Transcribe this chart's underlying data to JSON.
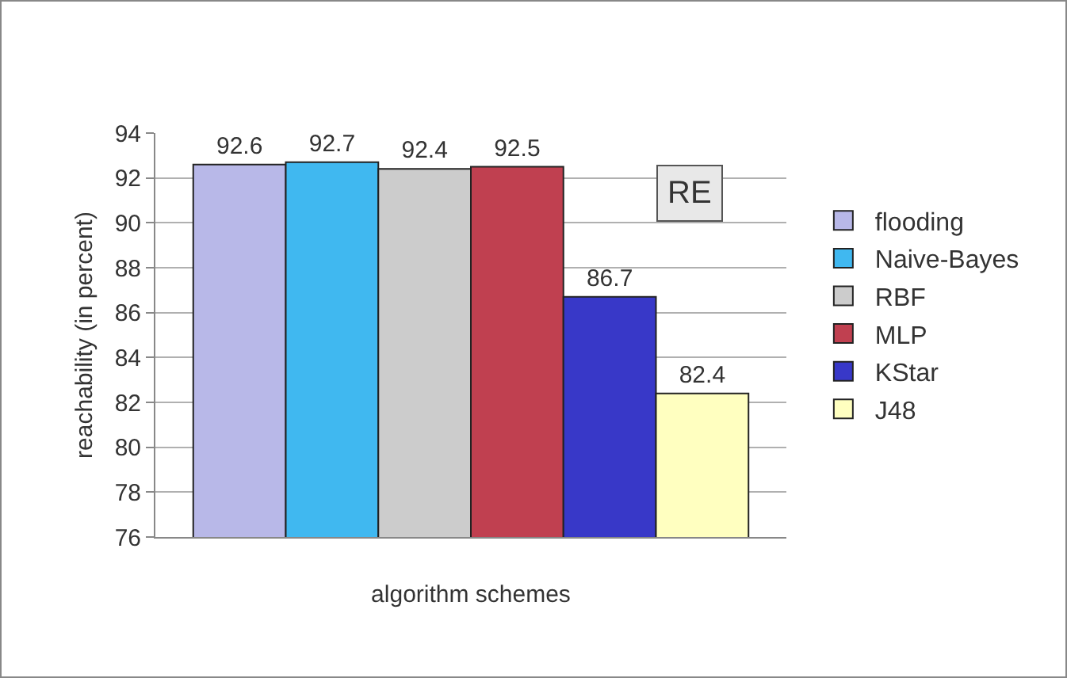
{
  "chart_data": {
    "type": "bar",
    "xlabel": "algorithm schemes",
    "ylabel": "reachability (in percent)",
    "categories": [
      null
    ],
    "series": [
      {
        "name": "flooding",
        "color": "#b8b8e8",
        "values": [
          92.6
        ]
      },
      {
        "name": "Naive-Bayes",
        "color": "#40b8f0",
        "values": [
          92.7
        ]
      },
      {
        "name": "RBF",
        "color": "#cccccc",
        "values": [
          92.4
        ]
      },
      {
        "name": "MLP",
        "color": "#c04050",
        "values": [
          92.5
        ]
      },
      {
        "name": "KStar",
        "color": "#3838c8",
        "values": [
          86.7
        ]
      },
      {
        "name": "J48",
        "color": "#ffffc0",
        "values": [
          82.4
        ]
      }
    ],
    "ylim": [
      76,
      94
    ],
    "yticks": [
      76,
      78,
      80,
      82,
      84,
      86,
      88,
      90,
      92,
      94
    ],
    "grid": "y",
    "legend": "right",
    "data_labels": true,
    "tick_labels": "y",
    "annotations": [
      "RE"
    ]
  }
}
